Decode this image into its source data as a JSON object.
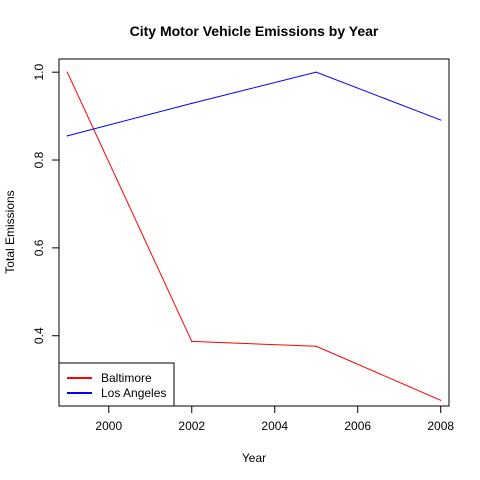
{
  "chart_data": {
    "type": "line",
    "title": "City Motor Vehicle Emissions by Year",
    "xlabel": "Year",
    "ylabel": "Total Emissions",
    "x": [
      1999,
      2002,
      2005,
      2008
    ],
    "xlim": [
      1998.8,
      2008.2
    ],
    "ylim": [
      0.24,
      1.03
    ],
    "x_ticks": [
      2000,
      2002,
      2004,
      2006,
      2008
    ],
    "y_ticks": [
      0.4,
      0.6,
      0.8,
      1.0
    ],
    "x_tick_labels": [
      "2000",
      "2002",
      "2004",
      "2006",
      "2008"
    ],
    "y_tick_labels": [
      "0.4",
      "0.6",
      "0.8",
      "1.0"
    ],
    "grid": false,
    "legend_position": "bottom-left",
    "series": [
      {
        "name": "Baltimore",
        "color": "#ff0000",
        "values": [
          1.0,
          0.387,
          0.376,
          0.253
        ]
      },
      {
        "name": "Los Angeles",
        "color": "#0000ff",
        "values": [
          0.855,
          0.929,
          1.0,
          0.891
        ]
      }
    ]
  }
}
